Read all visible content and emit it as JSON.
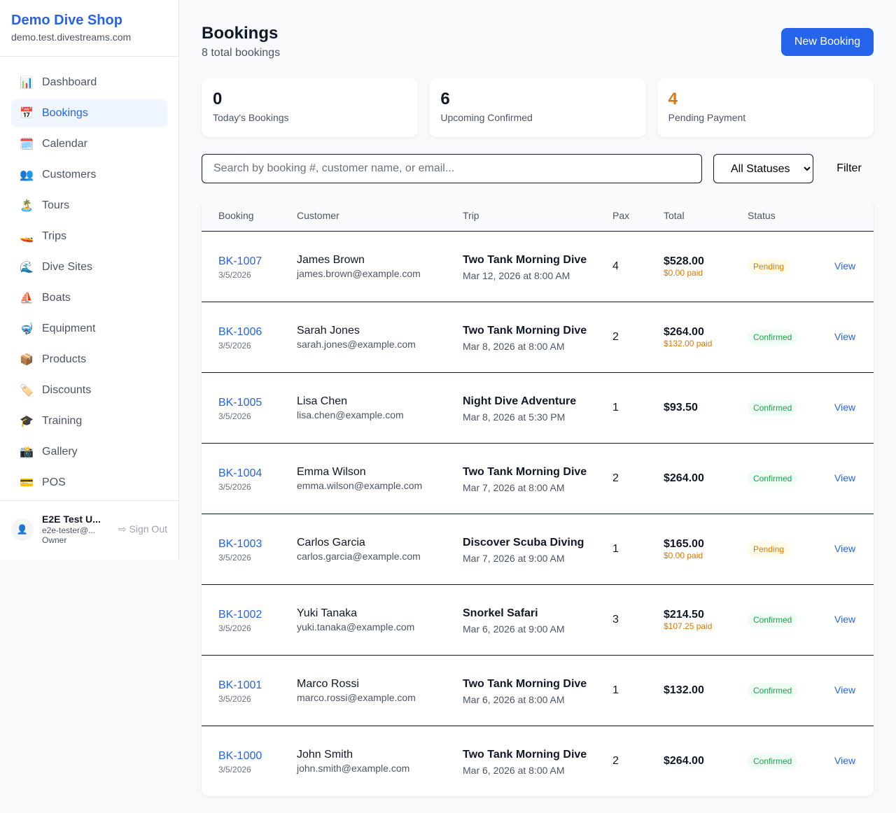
{
  "sidebar": {
    "shop_name": "Demo Dive Shop",
    "domain": "demo.test.divestreams.com",
    "items": [
      {
        "icon": "📊",
        "label": "Dashboard"
      },
      {
        "icon": "📅",
        "label": "Bookings",
        "active": true
      },
      {
        "icon": "🗓️",
        "label": "Calendar"
      },
      {
        "icon": "👥",
        "label": "Customers"
      },
      {
        "icon": "🏝️",
        "label": "Tours"
      },
      {
        "icon": "🚤",
        "label": "Trips"
      },
      {
        "icon": "🌊",
        "label": "Dive Sites"
      },
      {
        "icon": "⛵",
        "label": "Boats"
      },
      {
        "icon": "🤿",
        "label": "Equipment"
      },
      {
        "icon": "📦",
        "label": "Products"
      },
      {
        "icon": "🏷️",
        "label": "Discounts"
      },
      {
        "icon": "🎓",
        "label": "Training"
      },
      {
        "icon": "📸",
        "label": "Gallery"
      },
      {
        "icon": "💳",
        "label": "POS"
      }
    ],
    "user": {
      "name": "E2E Test U...",
      "email": "e2e-tester@...",
      "role": "Owner",
      "sign_out": "Sign Out"
    }
  },
  "header": {
    "title": "Bookings",
    "subtitle": "8 total bookings",
    "new_button": "New Booking"
  },
  "stats": [
    {
      "value": "0",
      "label": "Today's Bookings",
      "color": "#111827"
    },
    {
      "value": "6",
      "label": "Upcoming Confirmed",
      "color": "#111827"
    },
    {
      "value": "4",
      "label": "Pending Payment",
      "color": "#d97706"
    }
  ],
  "filters": {
    "search_placeholder": "Search by booking #, customer name, or email...",
    "status_selected": "All Statuses",
    "filter_button": "Filter"
  },
  "table": {
    "headers": [
      "Booking",
      "Customer",
      "Trip",
      "Pax",
      "Total",
      "Status"
    ],
    "view_label": "View",
    "rows": [
      {
        "id": "BK-1007",
        "date": "3/5/2026",
        "customer": "James Brown",
        "email": "james.brown@example.com",
        "trip": "Two Tank Morning Dive",
        "when": "Mar 12, 2026 at 8:00 AM",
        "pax": "4",
        "total": "$528.00",
        "paid": "$0.00 paid",
        "status": "Pending"
      },
      {
        "id": "BK-1006",
        "date": "3/5/2026",
        "customer": "Sarah Jones",
        "email": "sarah.jones@example.com",
        "trip": "Two Tank Morning Dive",
        "when": "Mar 8, 2026 at 8:00 AM",
        "pax": "2",
        "total": "$264.00",
        "paid": "$132.00 paid",
        "status": "Confirmed"
      },
      {
        "id": "BK-1005",
        "date": "3/5/2026",
        "customer": "Lisa Chen",
        "email": "lisa.chen@example.com",
        "trip": "Night Dive Adventure",
        "when": "Mar 8, 2026 at 5:30 PM",
        "pax": "1",
        "total": "$93.50",
        "paid": "",
        "status": "Confirmed"
      },
      {
        "id": "BK-1004",
        "date": "3/5/2026",
        "customer": "Emma Wilson",
        "email": "emma.wilson@example.com",
        "trip": "Two Tank Morning Dive",
        "when": "Mar 7, 2026 at 8:00 AM",
        "pax": "2",
        "total": "$264.00",
        "paid": "",
        "status": "Confirmed"
      },
      {
        "id": "BK-1003",
        "date": "3/5/2026",
        "customer": "Carlos Garcia",
        "email": "carlos.garcia@example.com",
        "trip": "Discover Scuba Diving",
        "when": "Mar 7, 2026 at 9:00 AM",
        "pax": "1",
        "total": "$165.00",
        "paid": "$0.00 paid",
        "status": "Pending"
      },
      {
        "id": "BK-1002",
        "date": "3/5/2026",
        "customer": "Yuki Tanaka",
        "email": "yuki.tanaka@example.com",
        "trip": "Snorkel Safari",
        "when": "Mar 6, 2026 at 9:00 AM",
        "pax": "3",
        "total": "$214.50",
        "paid": "$107.25 paid",
        "status": "Confirmed"
      },
      {
        "id": "BK-1001",
        "date": "3/5/2026",
        "customer": "Marco Rossi",
        "email": "marco.rossi@example.com",
        "trip": "Two Tank Morning Dive",
        "when": "Mar 6, 2026 at 8:00 AM",
        "pax": "1",
        "total": "$132.00",
        "paid": "",
        "status": "Confirmed"
      },
      {
        "id": "BK-1000",
        "date": "3/5/2026",
        "customer": "John Smith",
        "email": "john.smith@example.com",
        "trip": "Two Tank Morning Dive",
        "when": "Mar 6, 2026 at 8:00 AM",
        "pax": "2",
        "total": "$264.00",
        "paid": "",
        "status": "Confirmed"
      }
    ]
  }
}
